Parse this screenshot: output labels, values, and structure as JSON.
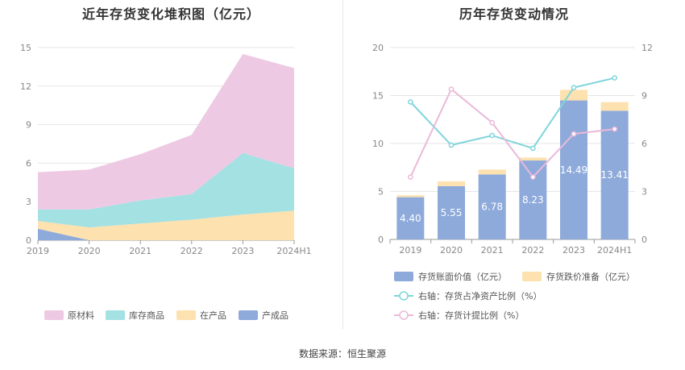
{
  "footer": {
    "source": "数据来源：恒生聚源"
  },
  "chart_data": [
    {
      "type": "area",
      "stacked": true,
      "title": "近年存货变化堆积图（亿元）",
      "categories": [
        "2019",
        "2020",
        "2021",
        "2022",
        "2023",
        "2024H1"
      ],
      "ylim": [
        0,
        15
      ],
      "yticks": [
        "0",
        "3",
        "6",
        "9",
        "12",
        "15"
      ],
      "grid": true,
      "legend_position": "bottom",
      "series": [
        {
          "name": "产成品",
          "color": "#8eaadb",
          "values": [
            0.9,
            0.0,
            0.0,
            0.0,
            0.0,
            0.0
          ]
        },
        {
          "name": "在产品",
          "color": "#fde1ae",
          "values": [
            0.6,
            1.0,
            1.3,
            1.6,
            2.0,
            2.3
          ]
        },
        {
          "name": "库存商品",
          "color": "#a4e1e3",
          "values": [
            0.9,
            1.4,
            1.8,
            2.0,
            4.8,
            3.3
          ]
        },
        {
          "name": "原材料",
          "color": "#eec9e4",
          "values": [
            2.9,
            3.1,
            3.6,
            4.6,
            7.7,
            7.8
          ]
        }
      ],
      "legend_order": [
        "原材料",
        "库存商品",
        "在产品",
        "产成品"
      ]
    },
    {
      "type": "bar",
      "stacked": true,
      "title": "历年存货变动情况",
      "categories": [
        "2019",
        "2020",
        "2021",
        "2022",
        "2023",
        "2024H1"
      ],
      "ylim": [
        0,
        20
      ],
      "yticks": [
        "0",
        "5",
        "10",
        "15",
        "20"
      ],
      "y2lim": [
        0,
        12
      ],
      "y2ticks": [
        "0",
        "3",
        "6",
        "9",
        "12"
      ],
      "grid": true,
      "legend_position": "bottom",
      "series": [
        {
          "name": "存货账面价值（亿元）",
          "color": "#8eaadb",
          "axis": "left",
          "values": [
            4.4,
            5.55,
            6.78,
            8.23,
            14.49,
            13.41
          ],
          "labels": [
            "4.40",
            "5.55",
            "6.78",
            "8.23",
            "14.49",
            "13.41"
          ]
        },
        {
          "name": "存货跌价准备（亿元）",
          "color": "#fde1ae",
          "axis": "left",
          "values": [
            0.2,
            0.5,
            0.5,
            0.3,
            1.1,
            0.9
          ]
        },
        {
          "name": "右轴：存货占净资产比例（%）",
          "color": "#7fd4db",
          "type": "line",
          "axis": "right",
          "values": [
            8.6,
            5.9,
            6.5,
            5.7,
            9.5,
            10.1
          ]
        },
        {
          "name": "右轴：存货计提比例（%）",
          "color": "#eab9d9",
          "type": "line",
          "axis": "right",
          "values": [
            3.9,
            9.4,
            7.3,
            3.9,
            6.6,
            6.9
          ]
        }
      ]
    }
  ]
}
